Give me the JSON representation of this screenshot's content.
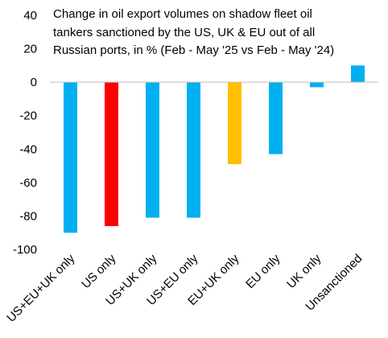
{
  "chart_data": {
    "type": "bar",
    "title": [
      "Change in oil export volumes on shadow fleet oil",
      "tankers sanctioned by the US, UK & EU out of all",
      "Russian ports, in % (Feb - May '25 vs Feb - May '24)"
    ],
    "categories": [
      "US+EU+UK only",
      "US only",
      "US+UK only",
      "US+EU only",
      "EU+UK only",
      "EU only",
      "UK only",
      "Unsanctioned"
    ],
    "values": [
      -90,
      -86,
      -81,
      -81,
      -49,
      -43,
      -3,
      10
    ],
    "colors": [
      "#00b0f0",
      "#ff0000",
      "#00b0f0",
      "#00b0f0",
      "#ffc000",
      "#00b0f0",
      "#00b0f0",
      "#00b0f0"
    ],
    "ylim": [
      -100,
      40
    ],
    "yticks": [
      40,
      20,
      0,
      -20,
      -40,
      -60,
      -80,
      -100
    ],
    "xlabel": "",
    "ylabel": "",
    "grid": false,
    "legend": "none"
  }
}
